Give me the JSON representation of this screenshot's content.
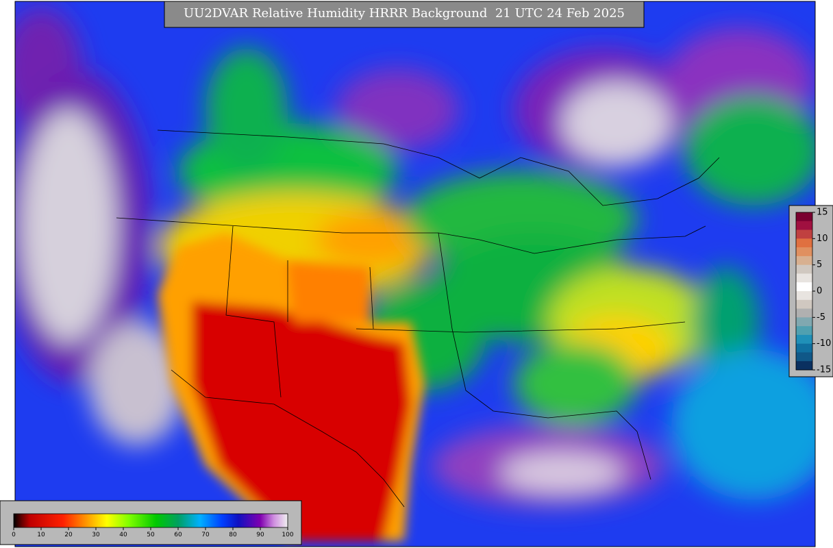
{
  "title": "UU2DVAR Relative Humidity HRRR Background  21 UTC 24 Feb 2025",
  "colorbar_rh": {
    "ticks": [
      0,
      10,
      20,
      30,
      40,
      50,
      60,
      70,
      80,
      90,
      100
    ]
  },
  "colorbar_diff": {
    "ticks": [
      15,
      10,
      5,
      0,
      -5,
      -10,
      -15
    ]
  }
}
